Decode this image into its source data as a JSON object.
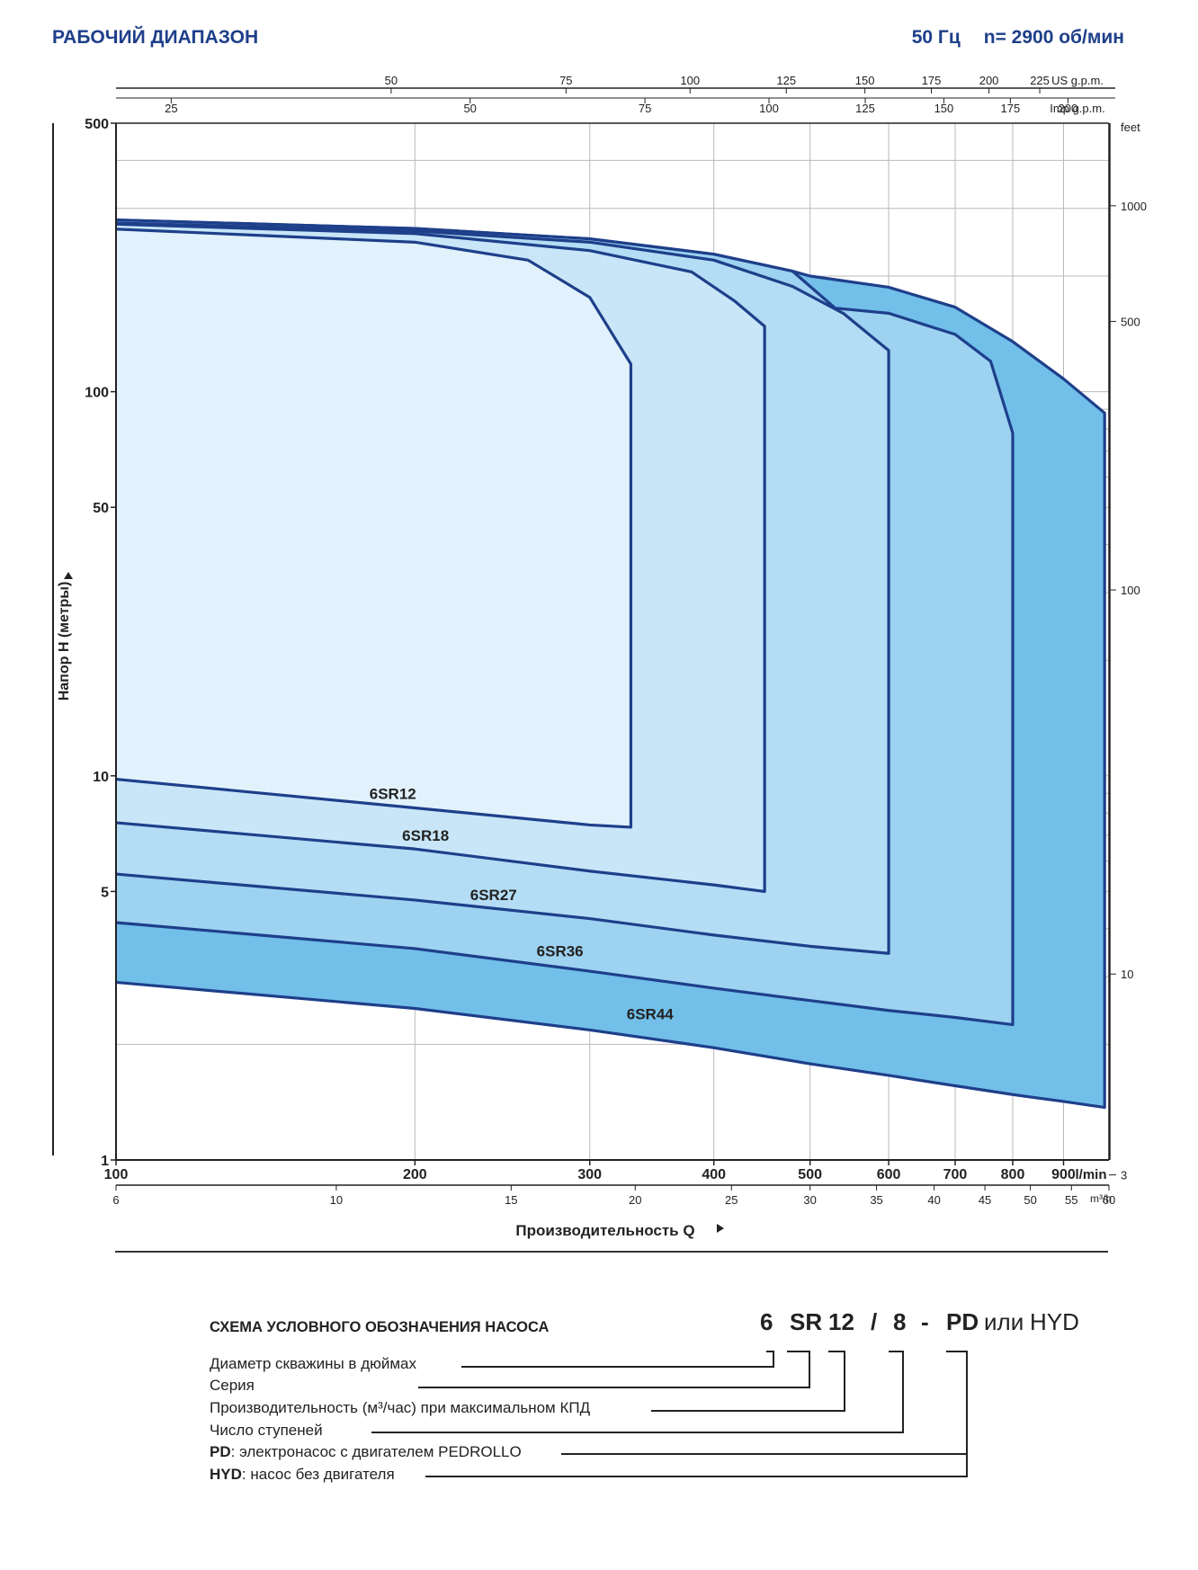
{
  "header": {
    "title": "РАБОЧИЙ ДИАПАЗОН",
    "frequency": "50 Гц",
    "speed": "n= 2900 об/мин"
  },
  "chart_data": {
    "type": "area",
    "x_scale": "log",
    "y_scale": "log",
    "xlim": [
      100,
      1000
    ],
    "ylim": [
      1,
      500
    ],
    "xlabel": "Производительность Q",
    "ylabel": "Напор H (метры)",
    "x_unit": "l/min",
    "x_ticks": [
      100,
      200,
      300,
      400,
      500,
      600,
      700,
      800,
      900
    ],
    "y_ticks": [
      1,
      5,
      10,
      50,
      100,
      500
    ],
    "secondary_axes": {
      "m3h": {
        "unit": "m³/h",
        "ticks": [
          6,
          10,
          15,
          20,
          25,
          30,
          35,
          40,
          45,
          50,
          55,
          60
        ]
      },
      "us_gpm": {
        "unit": "US g.p.m.",
        "ticks": [
          50,
          75,
          100,
          125,
          150,
          175,
          200,
          225
        ]
      },
      "imp_gpm": {
        "unit": "Imp g.p.m.",
        "ticks": [
          25,
          50,
          75,
          100,
          125,
          150,
          175,
          200
        ]
      },
      "feet": {
        "unit": "feet",
        "ticks": [
          3,
          10,
          100,
          500,
          1000
        ]
      }
    },
    "series": [
      {
        "name": "6SR44",
        "color": "#72bfea",
        "upper": [
          [
            100,
            280
          ],
          [
            200,
            266
          ],
          [
            300,
            250
          ],
          [
            400,
            228
          ],
          [
            480,
            206
          ],
          [
            500,
            200
          ],
          [
            600,
            187
          ],
          [
            700,
            166
          ],
          [
            800,
            135
          ],
          [
            900,
            108
          ],
          [
            990,
            88
          ]
        ],
        "lower": [
          [
            100,
            2.9
          ],
          [
            200,
            2.48
          ],
          [
            300,
            2.18
          ],
          [
            400,
            1.96
          ],
          [
            500,
            1.78
          ],
          [
            600,
            1.66
          ],
          [
            700,
            1.56
          ],
          [
            800,
            1.48
          ],
          [
            900,
            1.42
          ],
          [
            990,
            1.37
          ]
        ]
      },
      {
        "name": "6SR36",
        "color": "#9dd2f1",
        "upper": [
          [
            100,
            280
          ],
          [
            200,
            266
          ],
          [
            300,
            250
          ],
          [
            400,
            228
          ],
          [
            480,
            206
          ],
          [
            530,
            165
          ],
          [
            600,
            160
          ],
          [
            700,
            141
          ],
          [
            760,
            120
          ],
          [
            800,
            78
          ]
        ],
        "lower": [
          [
            100,
            4.15
          ],
          [
            200,
            3.55
          ],
          [
            300,
            3.1
          ],
          [
            400,
            2.8
          ],
          [
            500,
            2.6
          ],
          [
            600,
            2.45
          ],
          [
            700,
            2.35
          ],
          [
            800,
            2.25
          ]
        ]
      },
      {
        "name": "6SR27",
        "color": "#b4ddf5",
        "upper": [
          [
            100,
            275
          ],
          [
            200,
            262
          ],
          [
            300,
            245
          ],
          [
            400,
            220
          ],
          [
            480,
            188
          ],
          [
            540,
            160
          ],
          [
            600,
            128
          ]
        ],
        "lower": [
          [
            100,
            5.55
          ],
          [
            200,
            4.75
          ],
          [
            300,
            4.25
          ],
          [
            400,
            3.85
          ],
          [
            500,
            3.6
          ],
          [
            600,
            3.45
          ]
        ]
      },
      {
        "name": "6SR18",
        "color": "#c8e6f8",
        "upper": [
          [
            100,
            273
          ],
          [
            200,
            258
          ],
          [
            300,
            233
          ],
          [
            380,
            205
          ],
          [
            420,
            172
          ],
          [
            450,
            148
          ]
        ],
        "lower": [
          [
            100,
            7.55
          ],
          [
            200,
            6.45
          ],
          [
            300,
            5.65
          ],
          [
            400,
            5.2
          ],
          [
            450,
            5.0
          ]
        ]
      },
      {
        "name": "6SR12",
        "color": "#e1f2fc",
        "upper": [
          [
            100,
            265
          ],
          [
            200,
            245
          ],
          [
            260,
            220
          ],
          [
            300,
            176
          ],
          [
            330,
            118
          ]
        ],
        "lower": [
          [
            100,
            9.8
          ],
          [
            200,
            8.25
          ],
          [
            300,
            7.45
          ],
          [
            330,
            7.35
          ]
        ]
      }
    ],
    "series_labels": {
      "6SR12": [
        190,
        9.0
      ],
      "6SR18": [
        205,
        7.0
      ],
      "6SR27": [
        240,
        4.9
      ],
      "6SR36": [
        280,
        3.5
      ],
      "6SR44": [
        345,
        2.4
      ]
    },
    "line_color": "#1e3f8a",
    "grid": true
  },
  "designation_scheme": {
    "title": "СХЕМА УСЛОВНОГО ОБОЗНАЧЕНИЯ НАСОСА",
    "code": {
      "diameter": "6",
      "series": "SR",
      "capacity": "12",
      "slash": "/",
      "stages": "8",
      "dash": "-",
      "pd": "PD",
      "or": "или",
      "hyd": "HYD"
    },
    "items": [
      {
        "text": "Диаметр скважины в дюймах"
      },
      {
        "text": "Серия"
      },
      {
        "text": "Производительность (м³/час) при максимальном КПД"
      },
      {
        "text": "Число ступеней"
      },
      {
        "bold": "PD",
        "text": ": электронасос с двигателем PEDROLLO"
      },
      {
        "bold": "HYD",
        "text": ": насос без двигателя"
      }
    ]
  }
}
